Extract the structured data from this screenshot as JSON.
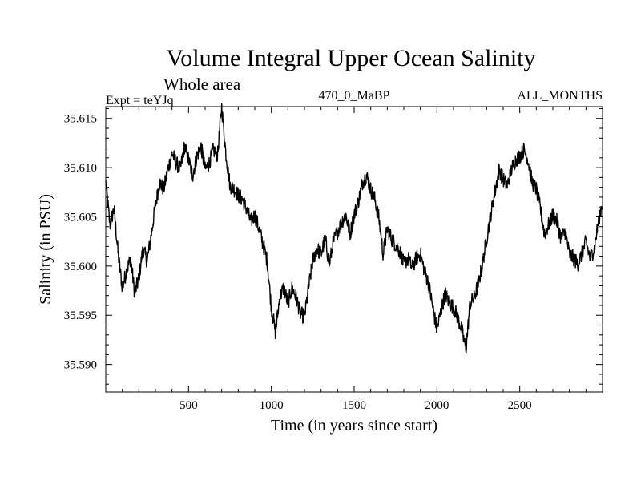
{
  "chart_data": {
    "type": "line",
    "title": "Volume Integral Upper Ocean Salinity",
    "subtitle": "Whole area",
    "header_left": "Expt = teYJq",
    "header_center": "470_0_MaBP",
    "header_right": "ALL_MONTHS",
    "xlabel": "Time (in years since start)",
    "ylabel": "Salinity (in PSU)",
    "xlim": [
      0,
      3000
    ],
    "ylim": [
      35.5872,
      35.6162
    ],
    "xticks": [
      500,
      1000,
      1500,
      2000,
      2500
    ],
    "xtick_labels": [
      "500",
      "1000",
      "1500",
      "2000",
      "2500"
    ],
    "yticks": [
      35.59,
      35.595,
      35.6,
      35.605,
      35.61,
      35.615
    ],
    "ytick_labels": [
      "35.590",
      "35.595",
      "35.600",
      "35.605",
      "35.610",
      "35.615"
    ],
    "series": [
      {
        "name": "Salinity",
        "color": "#000000",
        "x": [
          0,
          25,
          50,
          75,
          100,
          125,
          150,
          175,
          200,
          225,
          250,
          275,
          300,
          325,
          350,
          375,
          400,
          425,
          450,
          475,
          500,
          525,
          550,
          575,
          600,
          625,
          650,
          675,
          700,
          725,
          750,
          775,
          800,
          825,
          850,
          875,
          900,
          925,
          950,
          975,
          1000,
          1025,
          1050,
          1075,
          1100,
          1125,
          1150,
          1175,
          1200,
          1225,
          1250,
          1275,
          1300,
          1325,
          1350,
          1375,
          1400,
          1425,
          1450,
          1475,
          1500,
          1525,
          1550,
          1575,
          1600,
          1625,
          1650,
          1675,
          1700,
          1725,
          1750,
          1775,
          1800,
          1825,
          1850,
          1875,
          1900,
          1925,
          1950,
          1975,
          2000,
          2025,
          2050,
          2075,
          2100,
          2125,
          2150,
          2175,
          2200,
          2225,
          2250,
          2275,
          2300,
          2325,
          2350,
          2375,
          2400,
          2425,
          2450,
          2475,
          2500,
          2525,
          2550,
          2575,
          2600,
          2625,
          2650,
          2675,
          2700,
          2725,
          2750,
          2775,
          2800,
          2825,
          2850,
          2875,
          2900,
          2925,
          2950,
          2975,
          3000
        ],
        "values": [
          35.6085,
          35.6042,
          35.6058,
          35.6012,
          35.5978,
          35.5995,
          35.6008,
          35.5972,
          35.5988,
          35.6018,
          35.6005,
          35.6032,
          35.6062,
          35.6085,
          35.6078,
          35.6098,
          35.6115,
          35.6105,
          35.6098,
          35.6122,
          35.6108,
          35.6092,
          35.6112,
          35.6122,
          35.6098,
          35.6105,
          35.6118,
          35.6112,
          35.6162,
          35.6115,
          35.6082,
          35.6078,
          35.6072,
          35.6068,
          35.6058,
          35.6045,
          35.6052,
          35.6038,
          35.6022,
          35.6005,
          35.5958,
          35.5932,
          35.5968,
          35.5978,
          35.5962,
          35.5978,
          35.5968,
          35.5952,
          35.5948,
          35.5978,
          35.6005,
          35.6018,
          35.6012,
          35.6028,
          35.6002,
          35.6025,
          35.6035,
          35.6045,
          35.6052,
          35.6032,
          35.6052,
          35.6065,
          35.6085,
          35.6092,
          35.6078,
          35.6068,
          35.6048,
          35.6012,
          35.6038,
          35.6028,
          35.6022,
          35.6015,
          35.6002,
          35.6008,
          35.5998,
          35.6008,
          35.6012,
          35.5995,
          35.5982,
          35.5958,
          35.5935,
          35.5955,
          35.5972,
          35.5962,
          35.5958,
          35.5948,
          35.5935,
          35.5915,
          35.5962,
          35.5968,
          35.5982,
          35.6002,
          35.6028,
          35.6052,
          35.6075,
          35.6098,
          35.6088,
          35.6082,
          35.6098,
          35.6108,
          35.6112,
          35.6118,
          35.6108,
          35.6085,
          35.6078,
          35.6058,
          35.6032,
          35.6042,
          35.6052,
          35.6045,
          35.6028,
          35.6035,
          35.6012,
          35.6008,
          35.6002,
          35.6012,
          35.6025,
          35.6008,
          35.6018,
          35.6045,
          35.6065
        ]
      }
    ]
  }
}
